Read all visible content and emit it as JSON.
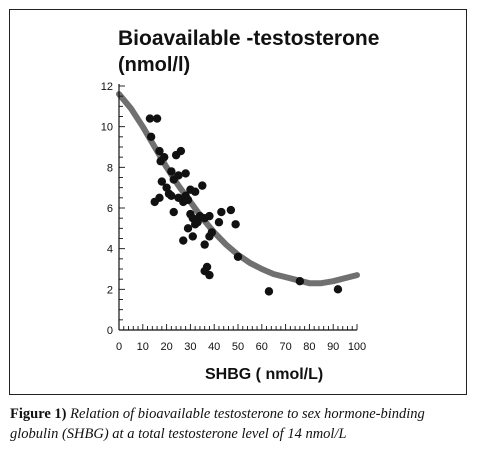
{
  "chart_data": {
    "type": "scatter",
    "title": "Bioavailable -testosterone",
    "subtitle": "(nmol/l)",
    "xlabel": "SHBG ( nmol/L)",
    "ylabel": "",
    "xlim": [
      0,
      100
    ],
    "ylim": [
      0,
      12
    ],
    "x_ticks": [
      "0",
      "10",
      "20",
      "30",
      "40",
      "50",
      "60",
      "70",
      "80",
      "90",
      "100"
    ],
    "y_ticks": [
      "0",
      "2",
      "4",
      "6",
      "8",
      "10",
      "12"
    ],
    "grid": false,
    "series": [
      {
        "points": [
          [
            13,
            10.4
          ],
          [
            16,
            10.4
          ],
          [
            13.5,
            9.5
          ],
          [
            17,
            8.8
          ],
          [
            17.5,
            8.3
          ],
          [
            19,
            8.5
          ],
          [
            22,
            7.8
          ],
          [
            24,
            8.6
          ],
          [
            26,
            8.8
          ],
          [
            18,
            7.3
          ],
          [
            20,
            7.0
          ],
          [
            21,
            6.7
          ],
          [
            23,
            7.4
          ],
          [
            25,
            7.6
          ],
          [
            28,
            7.7
          ],
          [
            30,
            6.9
          ],
          [
            32,
            6.8
          ],
          [
            35,
            7.1
          ],
          [
            15,
            6.3
          ],
          [
            17,
            6.5
          ],
          [
            22,
            6.6
          ],
          [
            23,
            5.8
          ],
          [
            25,
            6.5
          ],
          [
            27,
            6.3
          ],
          [
            28,
            6.6
          ],
          [
            29,
            6.4
          ],
          [
            30,
            5.7
          ],
          [
            31,
            5.5
          ],
          [
            32,
            5.2
          ],
          [
            33,
            5.3
          ],
          [
            34,
            5.6
          ],
          [
            36,
            5.5
          ],
          [
            38,
            5.6
          ],
          [
            42,
            5.3
          ],
          [
            43,
            5.8
          ],
          [
            47,
            5.9
          ],
          [
            49,
            5.2
          ],
          [
            27,
            4.4
          ],
          [
            29,
            5.0
          ],
          [
            31,
            4.6
          ],
          [
            36,
            4.2
          ],
          [
            38,
            4.6
          ],
          [
            39,
            4.8
          ],
          [
            50,
            3.6
          ],
          [
            37,
            3.1
          ],
          [
            36,
            2.9
          ],
          [
            38,
            2.7
          ],
          [
            63,
            1.9
          ],
          [
            76,
            2.4
          ],
          [
            92,
            2.0
          ]
        ]
      }
    ],
    "trend": {
      "x": [
        0,
        5,
        10,
        15,
        20,
        25,
        30,
        35,
        40,
        45,
        50,
        55,
        60,
        65,
        70,
        75,
        80,
        85,
        90,
        95,
        100
      ],
      "y": [
        11.6,
        10.9,
        10.0,
        9.0,
        8.0,
        7.1,
        6.3,
        5.5,
        4.8,
        4.2,
        3.7,
        3.3,
        3.0,
        2.75,
        2.6,
        2.45,
        2.3,
        2.3,
        2.4,
        2.55,
        2.7
      ]
    }
  },
  "caption": {
    "lead": "Figure 1)",
    "text": "Relation of bioavailable testosterone to sex hormone-binding globulin (SHBG) at a total testosterone level of 14 nmol/L"
  }
}
